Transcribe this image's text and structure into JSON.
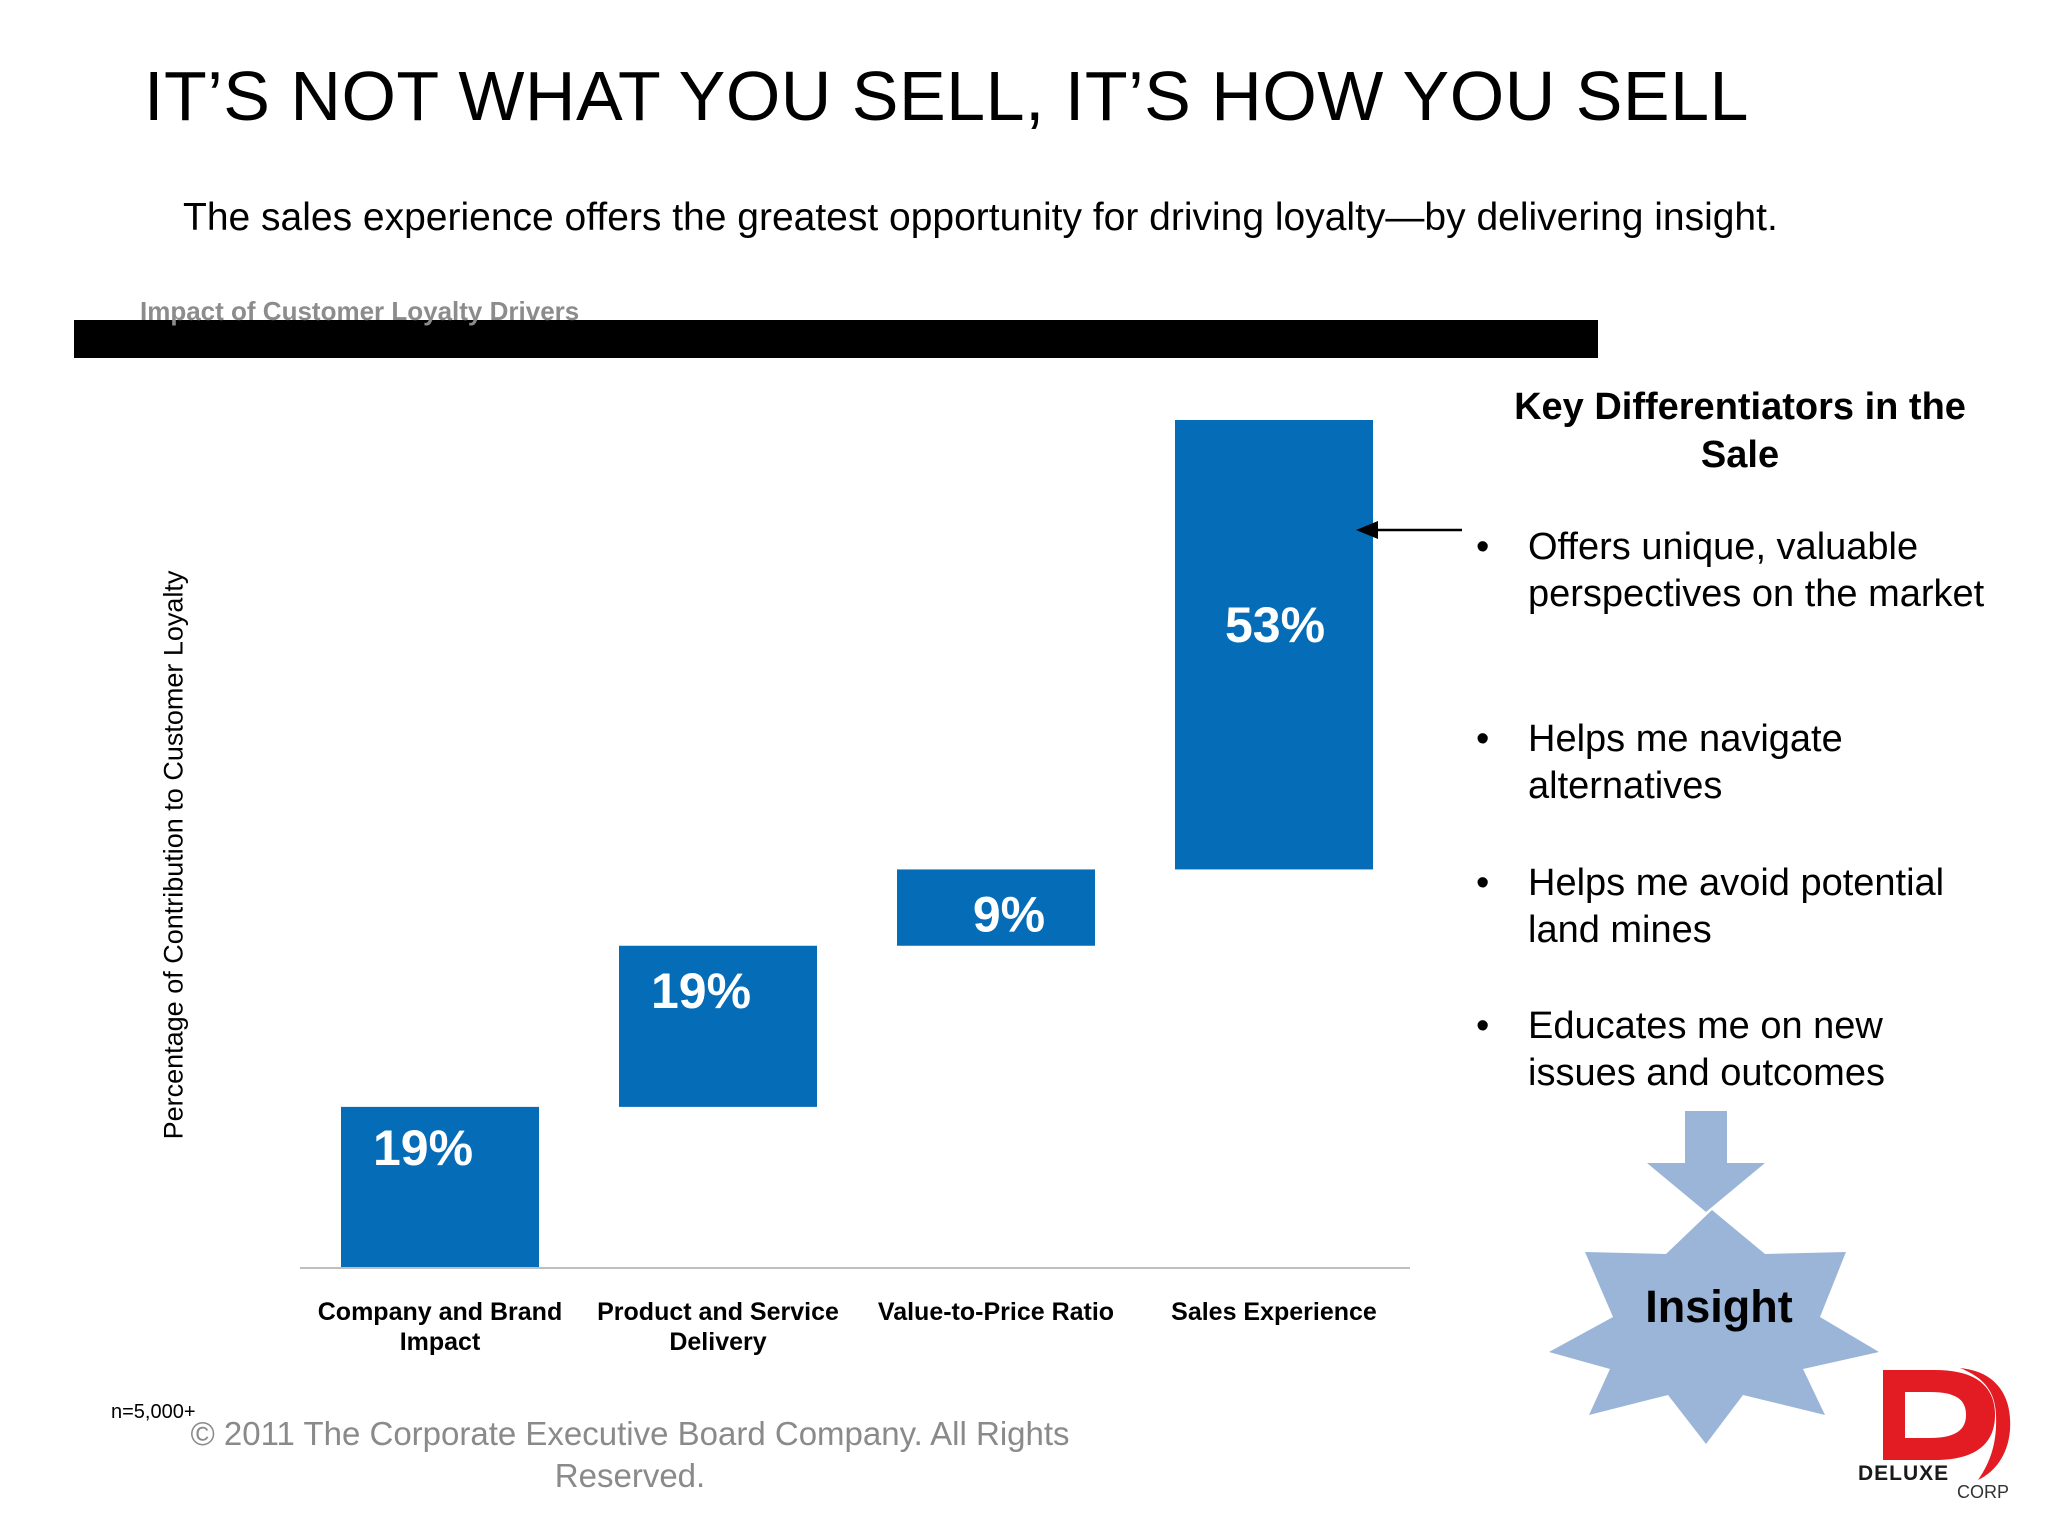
{
  "slide": {
    "title": "IT’S NOT WHAT YOU SELL, IT’S HOW YOU SELL",
    "subtitle": "The sales experience offers the greatest opportunity for driving loyalty—by delivering insight.",
    "note": "n=5,000+",
    "copyright": "© 2011 The Corporate Executive Board Company. All Rights Reserved."
  },
  "panel": {
    "title": "Key Differentiators in the Sale",
    "bullet_char": "•",
    "bullets": [
      "Offers unique, valuable perspectives on the market",
      "Helps me navigate alternatives",
      "Helps me avoid potential land mines",
      "Educates me on new issues and outcomes"
    ],
    "insight_label": "Insight"
  },
  "logo": {
    "wordmark": "DELUXE",
    "sub": "CORP",
    "color": "#e31b23"
  },
  "colors": {
    "bar": "#056cb7",
    "arrow_fill": "#9bb5d9",
    "axis": "#bfbfbf"
  },
  "chart_data": {
    "type": "bar",
    "subtype": "waterfall",
    "title": "Impact of Customer Loyalty Drivers",
    "ylabel": "Percentage of Contribution to Customer Loyalty",
    "xlabel": "",
    "categories": [
      "Company and Brand Impact",
      "Product and Service Delivery",
      "Value-to-Price Ratio",
      "Sales Experience"
    ],
    "values": [
      19,
      19,
      9,
      53
    ],
    "value_labels": [
      "19%",
      "19%",
      "9%",
      "53%"
    ],
    "ylim": [
      0,
      100
    ],
    "grid": false,
    "legend": "none"
  }
}
